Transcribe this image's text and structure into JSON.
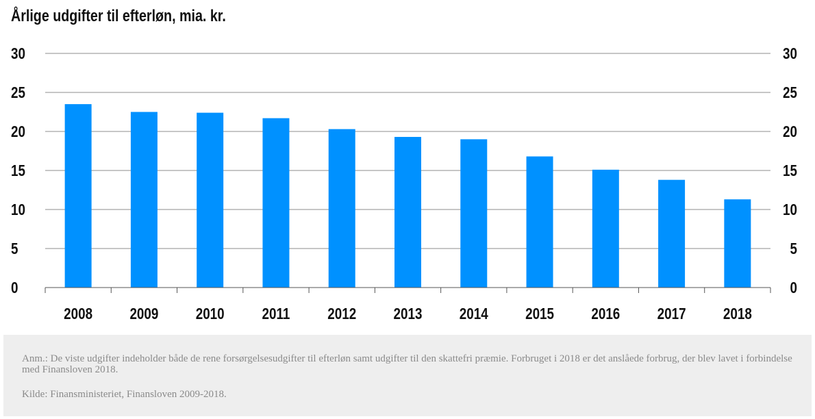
{
  "title": "Årlige udgifter til efterløn, mia. kr.",
  "chart_data": {
    "type": "bar",
    "title": "Årlige udgifter til efterløn, mia. kr.",
    "categories": [
      "2008",
      "2009",
      "2010",
      "2011",
      "2012",
      "2013",
      "2014",
      "2015",
      "2016",
      "2017",
      "2018"
    ],
    "values": [
      23.5,
      22.5,
      22.4,
      21.7,
      20.3,
      19.3,
      19.0,
      16.8,
      15.1,
      13.8,
      11.3
    ],
    "ylim": [
      0,
      30
    ],
    "yticks": [
      "0",
      "5",
      "10",
      "15",
      "20",
      "25",
      "30"
    ],
    "xlabel": "",
    "ylabel": "",
    "grid": true,
    "legend": "none",
    "bar_color": "#0091ff",
    "grid_color": "#8c8c8c"
  },
  "note": {
    "anm": "Anm.: De viste udgifter indeholder både de rene forsørgelsesudgifter til efterløn samt udgifter til den skattefri præmie. Forbruget i 2018 er det anslåede forbrug, der blev lavet i forbindelse med Finansloven 2018.",
    "kilde": "Kilde: Finansministeriet, Finansloven 2009-2018."
  }
}
